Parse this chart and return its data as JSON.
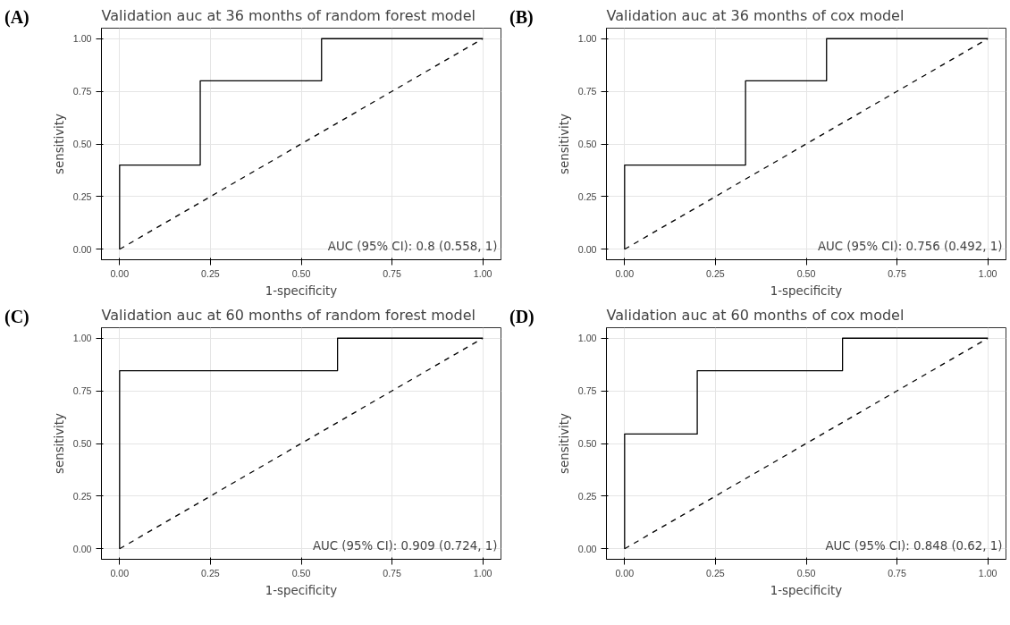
{
  "chart_data": [
    {
      "type": "line",
      "title": "Validation auc at 36 months of random forest model",
      "xlabel": "1-specificity",
      "ylabel": "sensitivity",
      "annotations": [
        "(A)",
        "AUC (95% CI): 0.8 (0.558, 1)"
      ],
      "xlim": [
        -0.05,
        1.05
      ],
      "ylim": [
        -0.05,
        1.05
      ],
      "xticks": [
        {
          "value": 0,
          "label": "0.00"
        },
        {
          "value": 0.25,
          "label": "0.25"
        },
        {
          "value": 0.5,
          "label": "0.50"
        },
        {
          "value": 0.75,
          "label": "0.75"
        },
        {
          "value": 1,
          "label": "1.00"
        }
      ],
      "yticks": [
        {
          "value": 0,
          "label": "0.00"
        },
        {
          "value": 0.25,
          "label": "0.25"
        },
        {
          "value": 0.5,
          "label": "0.50"
        },
        {
          "value": 0.75,
          "label": "0.75"
        },
        {
          "value": 1,
          "label": "1.00"
        }
      ],
      "grid": true,
      "series": [
        {
          "color": "#000000",
          "line_style": "solid",
          "x": [
            0,
            0,
            0.222,
            0.222,
            0.556,
            0.556,
            1
          ],
          "values": [
            0,
            0.4,
            0.4,
            0.8,
            0.8,
            1,
            1
          ]
        },
        {
          "color": "#000000",
          "line_style": "dashed",
          "x": [
            0,
            1
          ],
          "values": [
            0,
            1
          ]
        }
      ]
    },
    {
      "type": "line",
      "title": "Validation auc at 36 months of cox model",
      "xlabel": "1-specificity",
      "ylabel": "sensitivity",
      "annotations": [
        "(B)",
        "AUC (95% CI): 0.756 (0.492, 1)"
      ],
      "xlim": [
        -0.05,
        1.05
      ],
      "ylim": [
        -0.05,
        1.05
      ],
      "xticks": [
        {
          "value": 0,
          "label": "0.00"
        },
        {
          "value": 0.25,
          "label": "0.25"
        },
        {
          "value": 0.5,
          "label": "0.50"
        },
        {
          "value": 0.75,
          "label": "0.75"
        },
        {
          "value": 1,
          "label": "1.00"
        }
      ],
      "yticks": [
        {
          "value": 0,
          "label": "0.00"
        },
        {
          "value": 0.25,
          "label": "0.25"
        },
        {
          "value": 0.5,
          "label": "0.50"
        },
        {
          "value": 0.75,
          "label": "0.75"
        },
        {
          "value": 1,
          "label": "1.00"
        }
      ],
      "grid": true,
      "series": [
        {
          "color": "#000000",
          "line_style": "solid",
          "x": [
            0,
            0,
            0.333,
            0.333,
            0.556,
            0.556,
            1
          ],
          "values": [
            0,
            0.4,
            0.4,
            0.8,
            0.8,
            1,
            1
          ]
        },
        {
          "color": "#000000",
          "line_style": "dashed",
          "x": [
            0,
            1
          ],
          "values": [
            0,
            1
          ]
        }
      ]
    },
    {
      "type": "line",
      "title": "Validation auc at 60 months of random forest model",
      "xlabel": "1-specificity",
      "ylabel": "sensitivity",
      "annotations": [
        "(C)",
        "AUC (95% CI): 0.909 (0.724, 1)"
      ],
      "xlim": [
        -0.05,
        1.05
      ],
      "ylim": [
        -0.05,
        1.05
      ],
      "xticks": [
        {
          "value": 0,
          "label": "0.00"
        },
        {
          "value": 0.25,
          "label": "0.25"
        },
        {
          "value": 0.5,
          "label": "0.50"
        },
        {
          "value": 0.75,
          "label": "0.75"
        },
        {
          "value": 1,
          "label": "1.00"
        }
      ],
      "yticks": [
        {
          "value": 0,
          "label": "0.00"
        },
        {
          "value": 0.25,
          "label": "0.25"
        },
        {
          "value": 0.5,
          "label": "0.50"
        },
        {
          "value": 0.75,
          "label": "0.75"
        },
        {
          "value": 1,
          "label": "1.00"
        }
      ],
      "grid": true,
      "series": [
        {
          "color": "#000000",
          "line_style": "solid",
          "x": [
            0,
            0,
            0.6,
            0.6,
            1
          ],
          "values": [
            0,
            0.846,
            0.846,
            1,
            1
          ]
        },
        {
          "color": "#000000",
          "line_style": "dashed",
          "x": [
            0,
            1
          ],
          "values": [
            0,
            1
          ]
        }
      ]
    },
    {
      "type": "line",
      "title": "Validation auc at 60 months of cox model",
      "xlabel": "1-specificity",
      "ylabel": "sensitivity",
      "annotations": [
        "(D)",
        "AUC (95% CI): 0.848 (0.62, 1)"
      ],
      "xlim": [
        -0.05,
        1.05
      ],
      "ylim": [
        -0.05,
        1.05
      ],
      "xticks": [
        {
          "value": 0,
          "label": "0.00"
        },
        {
          "value": 0.25,
          "label": "0.25"
        },
        {
          "value": 0.5,
          "label": "0.50"
        },
        {
          "value": 0.75,
          "label": "0.75"
        },
        {
          "value": 1,
          "label": "1.00"
        }
      ],
      "yticks": [
        {
          "value": 0,
          "label": "0.00"
        },
        {
          "value": 0.25,
          "label": "0.25"
        },
        {
          "value": 0.5,
          "label": "0.50"
        },
        {
          "value": 0.75,
          "label": "0.75"
        },
        {
          "value": 1,
          "label": "1.00"
        }
      ],
      "grid": true,
      "series": [
        {
          "color": "#000000",
          "line_style": "solid",
          "x": [
            0,
            0,
            0.2,
            0.2,
            0.6,
            0.6,
            1
          ],
          "values": [
            0,
            0.545,
            0.545,
            0.846,
            0.846,
            1,
            1
          ]
        },
        {
          "color": "#000000",
          "line_style": "dashed",
          "x": [
            0,
            1
          ],
          "values": [
            0,
            1
          ]
        }
      ]
    }
  ]
}
